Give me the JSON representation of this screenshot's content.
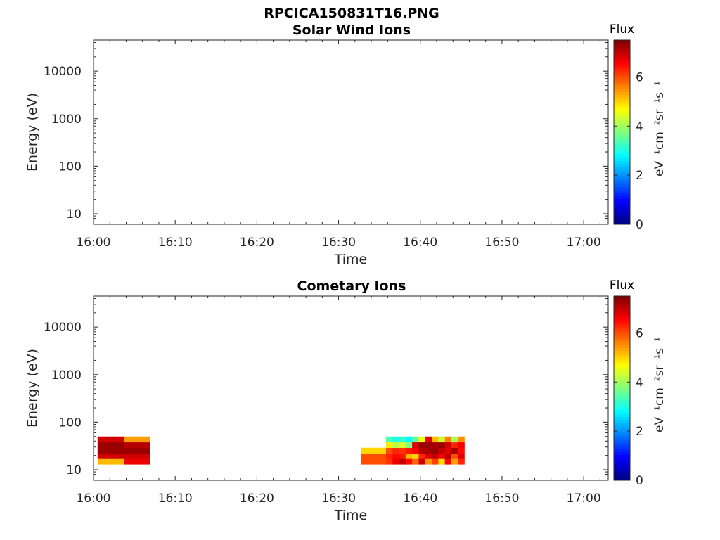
{
  "figure_title": "RPCICA150831T16.PNG",
  "chart_data": [
    {
      "type": "heatmap",
      "title": "Solar Wind Ions",
      "xlabel": "Time",
      "ylabel": "Energy (eV)",
      "x_ticks": [
        "16:00",
        "16:10",
        "16:20",
        "16:30",
        "16:40",
        "16:50",
        "17:00"
      ],
      "xlim_minutes_after_16h": [
        0,
        63
      ],
      "y_scale": "log",
      "y_ticks": [
        "10",
        "100",
        "1000",
        "10000"
      ],
      "ylim": [
        6,
        45000
      ],
      "colorbar": {
        "title": "Flux",
        "unit_label": "eV⁻¹cm⁻²sr⁻¹s⁻¹",
        "range": [
          0,
          7.5
        ],
        "ticks": [
          "0",
          "2",
          "4",
          "6"
        ],
        "colormap": "jet"
      },
      "cells": []
    },
    {
      "type": "heatmap",
      "title": "Cometary Ions",
      "xlabel": "Time",
      "ylabel": "Energy (eV)",
      "x_ticks": [
        "16:00",
        "16:10",
        "16:20",
        "16:30",
        "16:40",
        "16:50",
        "17:00"
      ],
      "xlim_minutes_after_16h": [
        0,
        63
      ],
      "y_scale": "log",
      "y_ticks": [
        "10",
        "100",
        "1000",
        "10000"
      ],
      "ylim": [
        6,
        45000
      ],
      "colorbar": {
        "title": "Flux",
        "unit_label": "eV⁻¹cm⁻²sr⁻¹s⁻¹",
        "range": [
          0,
          7.5
        ],
        "ticks": [
          "0",
          "2",
          "4",
          "6"
        ],
        "colormap": "jet"
      },
      "energy_bins_eV": [
        [
          13,
          17
        ],
        [
          17,
          22
        ],
        [
          22,
          29
        ],
        [
          29,
          38
        ],
        [
          38,
          50
        ]
      ],
      "cells": [
        {
          "t0": 0.5,
          "t1": 3.7,
          "flux": [
            5.2,
            6.9,
            7.3,
            7.3,
            6.9
          ]
        },
        {
          "t0": 3.7,
          "t1": 6.9,
          "flux": [
            6.7,
            6.9,
            7.3,
            7.1,
            5.4
          ]
        },
        {
          "t0": 32.7,
          "t1": 35.8,
          "flux": [
            6.0,
            6.0,
            5.0,
            0,
            0
          ]
        },
        {
          "t0": 35.8,
          "t1": 36.6,
          "flux": [
            6.2,
            6.3,
            6.0,
            4.8,
            3.4
          ]
        },
        {
          "t0": 36.6,
          "t1": 37.4,
          "flux": [
            6.7,
            6.5,
            6.3,
            4.2,
            3.0
          ]
        },
        {
          "t0": 37.4,
          "t1": 38.2,
          "flux": [
            7.0,
            6.4,
            6.2,
            4.4,
            3.2
          ]
        },
        {
          "t0": 38.2,
          "t1": 39.0,
          "flux": [
            6.5,
            5.2,
            6.4,
            3.8,
            2.8
          ]
        },
        {
          "t0": 39.0,
          "t1": 39.8,
          "flux": [
            5.8,
            5.0,
            6.6,
            6.8,
            3.5
          ]
        },
        {
          "t0": 39.8,
          "t1": 40.6,
          "flux": [
            6.9,
            6.3,
            7.1,
            7.3,
            4.6
          ]
        },
        {
          "t0": 40.6,
          "t1": 41.4,
          "flux": [
            5.5,
            6.8,
            7.2,
            7.3,
            6.8
          ]
        },
        {
          "t0": 41.4,
          "t1": 42.2,
          "flux": [
            6.1,
            7.0,
            7.3,
            7.2,
            5.2
          ]
        },
        {
          "t0": 42.2,
          "t1": 43.0,
          "flux": [
            5.0,
            6.6,
            7.0,
            7.3,
            4.3
          ]
        },
        {
          "t0": 43.0,
          "t1": 43.8,
          "flux": [
            6.6,
            7.1,
            6.8,
            6.9,
            5.6
          ]
        },
        {
          "t0": 43.8,
          "t1": 44.6,
          "flux": [
            5.4,
            6.0,
            7.2,
            6.3,
            4.0
          ]
        },
        {
          "t0": 44.6,
          "t1": 45.4,
          "flux": [
            6.3,
            6.8,
            6.5,
            6.6,
            5.5
          ]
        }
      ]
    }
  ]
}
